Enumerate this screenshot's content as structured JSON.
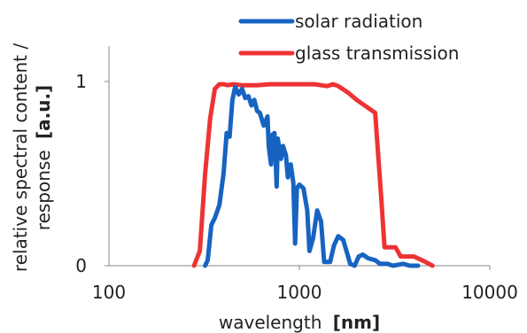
{
  "chart_data": {
    "type": "line",
    "xscale": "log",
    "xlim": [
      100,
      10000
    ],
    "ylim": [
      0,
      1
    ],
    "x_ticks": [
      100,
      1000,
      10000
    ],
    "x_tick_labels": [
      "100",
      "1000",
      "10000"
    ],
    "y_ticks": [
      0,
      1
    ],
    "y_tick_labels": [
      "0",
      "1"
    ],
    "xlabel": "wavelength",
    "xlabel_unit": "[nm]",
    "ylabel_line1": "relative spectral content /",
    "ylabel_line2": "response",
    "ylabel_unit": "[a.u.]",
    "grid": false,
    "legend_position": "top-right",
    "series": [
      {
        "name": "solar radiation",
        "color": "#1763c1",
        "points": [
          [
            320,
            0
          ],
          [
            330,
            0.03
          ],
          [
            345,
            0.22
          ],
          [
            360,
            0.26
          ],
          [
            380,
            0.33
          ],
          [
            400,
            0.5
          ],
          [
            415,
            0.72
          ],
          [
            430,
            0.7
          ],
          [
            445,
            0.9
          ],
          [
            460,
            0.97
          ],
          [
            480,
            0.93
          ],
          [
            500,
            0.96
          ],
          [
            520,
            0.91
          ],
          [
            540,
            0.92
          ],
          [
            560,
            0.87
          ],
          [
            580,
            0.9
          ],
          [
            600,
            0.84
          ],
          [
            620,
            0.83
          ],
          [
            650,
            0.76
          ],
          [
            680,
            0.81
          ],
          [
            690,
            0.65
          ],
          [
            710,
            0.55
          ],
          [
            720,
            0.71
          ],
          [
            740,
            0.72
          ],
          [
            760,
            0.43
          ],
          [
            770,
            0.69
          ],
          [
            800,
            0.58
          ],
          [
            820,
            0.65
          ],
          [
            850,
            0.6
          ],
          [
            870,
            0.48
          ],
          [
            900,
            0.55
          ],
          [
            930,
            0.45
          ],
          [
            950,
            0.12
          ],
          [
            970,
            0.42
          ],
          [
            1000,
            0.44
          ],
          [
            1050,
            0.42
          ],
          [
            1100,
            0.3
          ],
          [
            1130,
            0.08
          ],
          [
            1180,
            0.15
          ],
          [
            1240,
            0.3
          ],
          [
            1300,
            0.24
          ],
          [
            1350,
            0.02
          ],
          [
            1450,
            0.02
          ],
          [
            1520,
            0.11
          ],
          [
            1600,
            0.16
          ],
          [
            1700,
            0.14
          ],
          [
            1780,
            0.07
          ],
          [
            1850,
            0.01
          ],
          [
            1950,
            0.0
          ],
          [
            2050,
            0.05
          ],
          [
            2150,
            0.06
          ],
          [
            2300,
            0.04
          ],
          [
            2500,
            0.03
          ],
          [
            2650,
            0.01
          ],
          [
            2900,
            0.01
          ],
          [
            3100,
            0.0
          ],
          [
            3500,
            0.01
          ],
          [
            3800,
            0.0
          ],
          [
            4200,
            0.0
          ]
        ]
      },
      {
        "name": "glass transmission",
        "color": "#ee3333",
        "points": [
          [
            280,
            0.0
          ],
          [
            300,
            0.08
          ],
          [
            320,
            0.5
          ],
          [
            340,
            0.8
          ],
          [
            360,
            0.96
          ],
          [
            380,
            0.985
          ],
          [
            400,
            0.985
          ],
          [
            420,
            0.98
          ],
          [
            450,
            0.985
          ],
          [
            500,
            0.98
          ],
          [
            600,
            0.98
          ],
          [
            700,
            0.985
          ],
          [
            800,
            0.985
          ],
          [
            1000,
            0.985
          ],
          [
            1200,
            0.985
          ],
          [
            1400,
            0.975
          ],
          [
            1500,
            0.985
          ],
          [
            1600,
            0.975
          ],
          [
            1800,
            0.94
          ],
          [
            2000,
            0.9
          ],
          [
            2200,
            0.87
          ],
          [
            2500,
            0.83
          ],
          [
            2700,
            0.35
          ],
          [
            2800,
            0.1
          ],
          [
            3200,
            0.1
          ],
          [
            3400,
            0.05
          ],
          [
            4000,
            0.05
          ],
          [
            4600,
            0.02
          ],
          [
            5000,
            0.0
          ]
        ]
      }
    ]
  }
}
